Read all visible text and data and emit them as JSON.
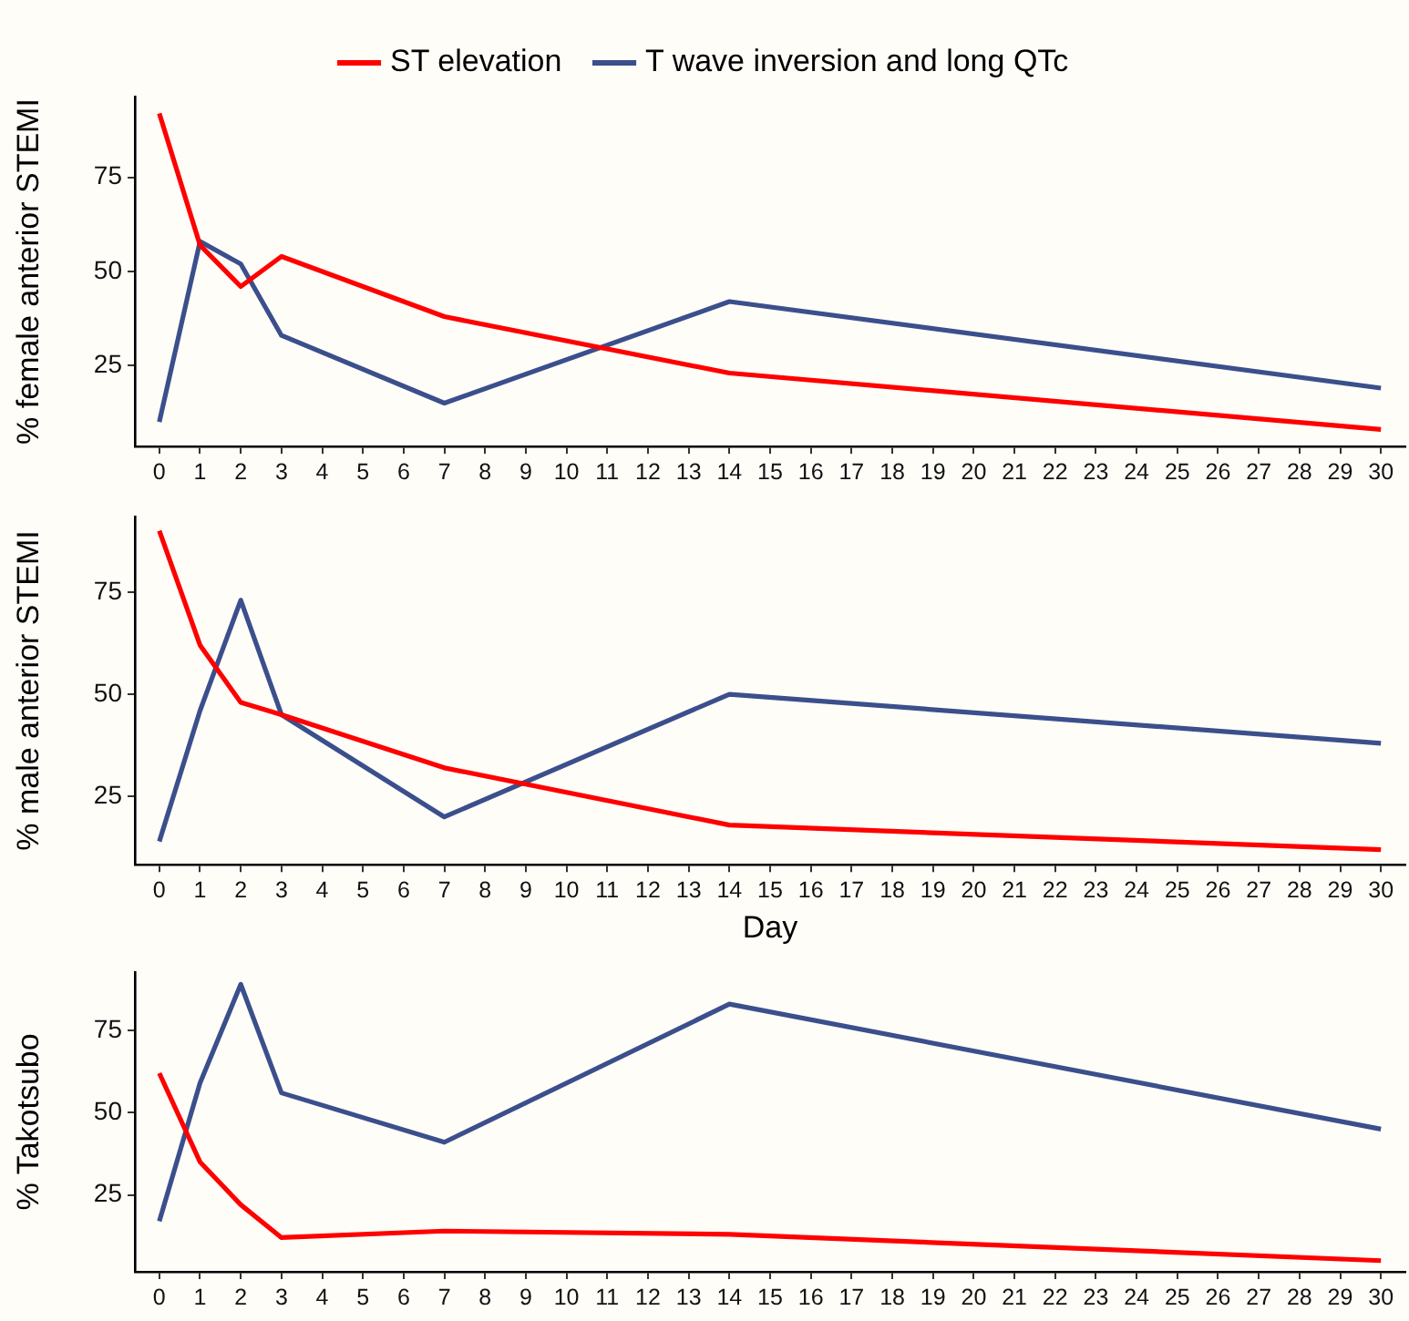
{
  "chart_data": [
    {
      "type": "line",
      "ylabel": "% female anterior STEMI",
      "x": [
        0,
        1,
        2,
        3,
        7,
        14,
        30
      ],
      "xlim": [
        -0.6,
        30.6
      ],
      "xticks": [
        0,
        1,
        2,
        3,
        4,
        5,
        6,
        7,
        8,
        9,
        10,
        11,
        12,
        13,
        14,
        15,
        16,
        17,
        18,
        19,
        20,
        21,
        22,
        23,
        24,
        25,
        26,
        27,
        28,
        29,
        30
      ],
      "ylim": [
        3.5,
        96.5
      ],
      "yticks": [
        25,
        50,
        75
      ],
      "grid": false,
      "legend": "top",
      "marker": "none",
      "series": [
        {
          "name": "ST elevation",
          "color": "#ff0000",
          "values": [
            92,
            57,
            46,
            54,
            38,
            23,
            8
          ]
        },
        {
          "name": "T wave inversion and long QTc",
          "color": "#3b4f8c",
          "values": [
            10,
            58,
            52,
            33,
            15,
            42,
            19
          ]
        }
      ]
    },
    {
      "type": "line",
      "ylabel": "% male anterior STEMI",
      "xlabel": "Day",
      "x": [
        0,
        1,
        2,
        3,
        7,
        14,
        30
      ],
      "xlim": [
        -0.6,
        30.6
      ],
      "xticks": [
        0,
        1,
        2,
        3,
        4,
        5,
        6,
        7,
        8,
        9,
        10,
        11,
        12,
        13,
        14,
        15,
        16,
        17,
        18,
        19,
        20,
        21,
        22,
        23,
        24,
        25,
        26,
        27,
        28,
        29,
        30
      ],
      "ylim": [
        8.3,
        93.5
      ],
      "yticks": [
        25,
        50,
        75
      ],
      "grid": false,
      "legend": false,
      "marker": "none",
      "series": [
        {
          "color": "#ff0000",
          "values": [
            90,
            62,
            48,
            45,
            32,
            18,
            12
          ]
        },
        {
          "color": "#3b4f8c",
          "values": [
            14,
            46,
            73,
            45,
            20,
            50,
            38
          ]
        }
      ]
    },
    {
      "type": "line",
      "ylabel": "% Takotsubo",
      "x": [
        0,
        1,
        2,
        3,
        7,
        14,
        30
      ],
      "xlim": [
        -0.6,
        30.6
      ],
      "xticks": [
        0,
        1,
        2,
        3,
        4,
        5,
        6,
        7,
        8,
        9,
        10,
        11,
        12,
        13,
        14,
        15,
        16,
        17,
        18,
        19,
        20,
        21,
        22,
        23,
        24,
        25,
        26,
        27,
        28,
        29,
        30
      ],
      "ylim": [
        1.6,
        92.8
      ],
      "yticks": [
        25,
        50,
        75
      ],
      "grid": false,
      "legend": false,
      "marker": "none",
      "series": [
        {
          "color": "#ff0000",
          "values": [
            62,
            35,
            22,
            12,
            14,
            13,
            5
          ]
        },
        {
          "color": "#3b4f8c",
          "values": [
            17,
            59,
            89,
            56,
            41,
            83,
            45
          ]
        }
      ]
    }
  ]
}
